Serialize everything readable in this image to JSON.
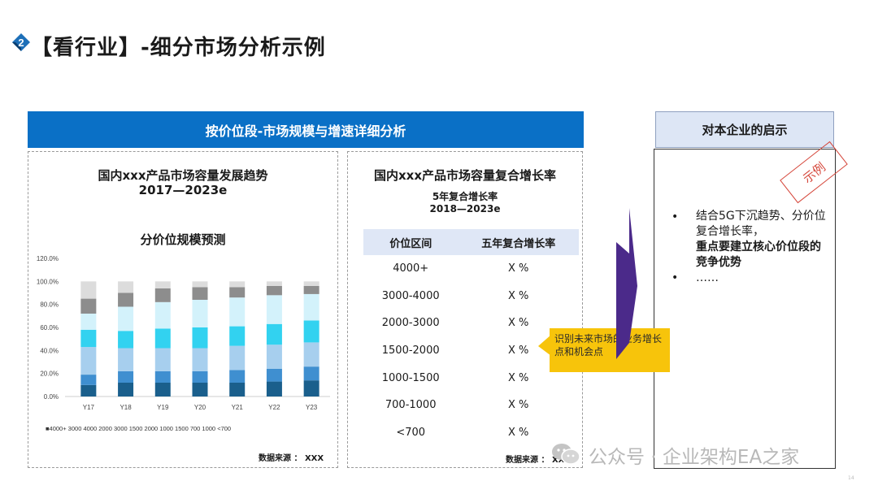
{
  "header": {
    "badge_number": "2",
    "title": "【看行业】-细分市场分析示例"
  },
  "band_title": "按价位段-市场规模与增速详细分析",
  "right_header": "对本企业的启示",
  "left_panel": {
    "title_line1": "国内xxx产品市场容量发展趋势",
    "title_line2": "2017—2023e",
    "subtitle": "分价位规模预测",
    "source": "数据来源 ： XXX"
  },
  "chart_data": {
    "type": "bar",
    "stacked": true,
    "title": "分价位规模预测",
    "categories": [
      "Y17",
      "Y18",
      "Y19",
      "Y20",
      "Y21",
      "Y22",
      "Y23"
    ],
    "y_ticks": [
      "0.0%",
      "20.0%",
      "40.0%",
      "60.0%",
      "80.0%",
      "100.0%",
      "120.0%"
    ],
    "ylim": [
      0,
      120
    ],
    "grid": false,
    "legend_position": "bottom",
    "legend_text": "■4000+ 3000 4000 2000 3000 1500 2000 1000 1500 700 1000 <700",
    "series": [
      {
        "name": "4000+",
        "color": "#1a5f8c",
        "values": [
          10,
          12,
          12,
          12,
          12,
          13,
          14
        ]
      },
      {
        "name": "3000-4000",
        "color": "#3f8fd0",
        "values": [
          9,
          10,
          10,
          10,
          11,
          11,
          12
        ]
      },
      {
        "name": "2000-3000",
        "color": "#a7cfee",
        "values": [
          24,
          20,
          20,
          20,
          21,
          21,
          21
        ]
      },
      {
        "name": "1500-2000",
        "color": "#32d2f0",
        "values": [
          15,
          15,
          17,
          18,
          17,
          18,
          19
        ]
      },
      {
        "name": "1000-1500",
        "color": "#d3f2fb",
        "values": [
          14,
          21,
          23,
          24,
          25,
          25,
          23
        ]
      },
      {
        "name": "700-1000",
        "color": "#8d8d8d",
        "values": [
          13,
          12,
          12,
          11,
          9,
          8,
          7
        ]
      },
      {
        "name": "<700",
        "color": "#dcdcdc",
        "values": [
          15,
          10,
          6,
          5,
          5,
          4,
          4
        ]
      }
    ]
  },
  "mid_panel": {
    "title": "国内xxx产品市场容量复合增长率",
    "subtitle1": "5年复合增长率",
    "subtitle2": "2018—2023e",
    "table": {
      "headers": [
        "价位区间",
        "五年复合增长率"
      ],
      "rows": [
        [
          "4000+",
          "X %"
        ],
        [
          "3000-4000",
          "X %"
        ],
        [
          "2000-3000",
          "X %"
        ],
        [
          "1500-2000",
          "X %"
        ],
        [
          "1000-1500",
          "X %"
        ],
        [
          "700-1000",
          "X %"
        ],
        [
          "<700",
          "X %"
        ]
      ]
    },
    "source": "数据来源 ： XXX"
  },
  "callout": "识别未来市场的业务增长点和机会点",
  "right_panel": {
    "stamp": "示例",
    "bullet_symbol": "•",
    "bullet1_text": "结合5G下沉趋势、分价位复合增长率，",
    "bullet1_bold": "重点要建立核心价位段的竞争优势",
    "bullet2_text": "……"
  },
  "watermark": "公众号 · 企业架构EA之家",
  "page_number": "14",
  "colors": {
    "band": "#0a70c6",
    "arrow": "#4b2a8a",
    "callout": "#f7c40b",
    "stamp": "#d5463a"
  }
}
